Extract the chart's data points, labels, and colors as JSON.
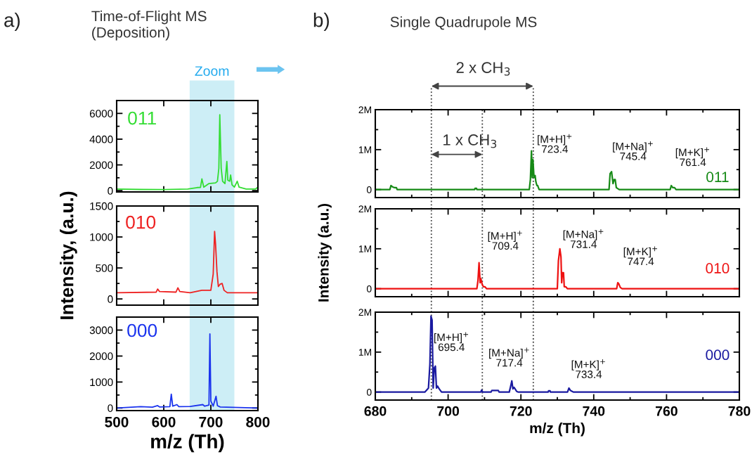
{
  "chart_data": [
    {
      "type": "line",
      "title": "Time-of-Flight MS\n(Deposition)",
      "annotations": [
        "a)"
      ],
      "xlim": [
        500,
        800
      ],
      "xticks": [
        500,
        600,
        700,
        800
      ],
      "ylim": [
        -100,
        7000
      ],
      "yticks": [
        0,
        {
          "value": 1000,
          "label": null
        },
        2000,
        {
          "value": 3000,
          "label": null
        },
        4000,
        {
          "value": 5000,
          "label": null
        },
        6000
      ],
      "tick_labels": "y",
      "grid": false,
      "legend": false,
      "bands": [
        {
          "axis": "x",
          "from": 655,
          "to": 750,
          "label": "Zoom",
          "color": "#cdeef6"
        }
      ],
      "series": [
        {
          "name": "011",
          "color": "#33dd33",
          "x": [
            500,
            551,
            601,
            651,
            671,
            678,
            681,
            685,
            696,
            710,
            714,
            717,
            719,
            722,
            725,
            730,
            734,
            736,
            740,
            742,
            745,
            750,
            756,
            760,
            775,
            795,
            800
          ],
          "values": [
            130,
            90,
            80,
            130,
            240,
            250,
            910,
            270,
            550,
            600,
            730,
            1730,
            5900,
            1730,
            730,
            550,
            2270,
            820,
            730,
            1220,
            450,
            270,
            730,
            270,
            130,
            130,
            270
          ]
        }
      ]
    },
    {
      "type": "line",
      "ylabel": "Intensity, (a.u.)",
      "xlim": [
        500,
        800
      ],
      "xticks": [
        500,
        600,
        700,
        800
      ],
      "ylim": [
        -100,
        1500
      ],
      "yticks": [
        0,
        {
          "value": 250,
          "label": null
        },
        500,
        {
          "value": 750,
          "label": null
        },
        1000,
        {
          "value": 1250,
          "label": null
        },
        1500
      ],
      "tick_labels": "y",
      "grid": false,
      "legend": false,
      "bands": [
        {
          "axis": "x",
          "from": 655,
          "to": 750,
          "color": "#cdeef6"
        }
      ],
      "series": [
        {
          "name": "010",
          "color": "#ee2222",
          "x": [
            500,
            584,
            587,
            591,
            626,
            630,
            634,
            656,
            681,
            700,
            705,
            708,
            710,
            713,
            716,
            720,
            724,
            728,
            735,
            800
          ],
          "values": [
            100,
            110,
            160,
            120,
            110,
            180,
            120,
            100,
            140,
            140,
            400,
            1090,
            890,
            440,
            200,
            240,
            250,
            140,
            100,
            100
          ]
        }
      ]
    },
    {
      "type": "line",
      "xlabel": "m/z (Th)",
      "xlim": [
        500,
        800
      ],
      "xticks": [
        500,
        600,
        700,
        800
      ],
      "ylim": [
        -100,
        3500
      ],
      "yticks": [
        0,
        {
          "value": 500,
          "label": null
        },
        1000,
        {
          "value": 1500,
          "label": null
        },
        2000,
        {
          "value": 2500,
          "label": null
        },
        3000
      ],
      "grid": false,
      "legend": false,
      "bands": [
        {
          "axis": "x",
          "from": 655,
          "to": 750,
          "color": "#cdeef6"
        }
      ],
      "series": [
        {
          "name": "000",
          "color": "#1a33ee",
          "x": [
            500,
            551,
            576,
            587,
            591,
            613,
            616,
            619,
            628,
            632,
            656,
            683,
            687,
            696,
            698,
            700,
            705,
            711,
            714,
            720,
            800
          ],
          "values": [
            0,
            50,
            30,
            90,
            40,
            50,
            530,
            70,
            130,
            50,
            60,
            130,
            70,
            110,
            2850,
            270,
            70,
            450,
            90,
            40,
            0
          ]
        }
      ]
    },
    {
      "type": "line",
      "title": "Single Quadrupole MS",
      "xlim": [
        680,
        780
      ],
      "xticks": [
        680,
        {
          "value": 690,
          "label": null
        },
        700,
        {
          "value": 710,
          "label": null
        },
        720,
        {
          "value": 730,
          "label": null
        },
        740,
        {
          "value": 750,
          "label": null
        },
        760,
        {
          "value": 770,
          "label": null
        },
        780
      ],
      "ylim": [
        -200000,
        2000000
      ],
      "yticks": [
        0,
        {
          "value": 500000,
          "label": null
        },
        {
          "value": 1000000,
          "label": "1M"
        },
        {
          "value": 1500000,
          "label": null
        },
        {
          "value": 2000000,
          "label": "2M"
        }
      ],
      "tick_labels": "y",
      "grid": false,
      "legend": false,
      "annotations": [
        "b)",
        "2 x CH$_{3}$",
        "1 x CH$_{3}$",
        "[M+H]$^{+}$",
        "723.4",
        "[M+Na]$^{+}$",
        "745.4",
        "[M+K]$^{+}$",
        "761.4"
      ],
      "ref_lines": [
        {
          "axis": "x",
          "value": 695.4,
          "color": "#444444",
          "line_style": "dotted"
        },
        {
          "axis": "x",
          "value": 709.4,
          "color": "#444444",
          "line_style": "dotted"
        },
        {
          "axis": "x",
          "value": 723.4,
          "color": "#444444",
          "line_style": "dotted"
        }
      ],
      "series": [
        {
          "name": "011",
          "color": "#168a16",
          "x": [
            680,
            684,
            684.3,
            684.7,
            685.2,
            685.8,
            686,
            707.3,
            707.4,
            707.8,
            707.9,
            722.3,
            722.6,
            722.9,
            723.1,
            723.3,
            723.6,
            723.9,
            724.1,
            724.4,
            724.6,
            725,
            725.4,
            744.2,
            744.5,
            744.9,
            745.3,
            745.6,
            745.9,
            746.2,
            746.5,
            747,
            761,
            761.3,
            761.7,
            762.2,
            762.6,
            780
          ],
          "values": [
            0,
            0,
            100000,
            70000,
            50000,
            50000,
            0,
            0,
            30000,
            30000,
            0,
            0,
            250000,
            970000,
            300000,
            750000,
            300000,
            350000,
            200000,
            100000,
            100000,
            0,
            0,
            0,
            400000,
            450000,
            150000,
            250000,
            250000,
            50000,
            30000,
            0,
            0,
            100000,
            50000,
            50000,
            0,
            0
          ]
        }
      ]
    },
    {
      "type": "line",
      "ylabel": "Intensity (a.u.)",
      "xlim": [
        680,
        780
      ],
      "xticks": [
        680,
        {
          "value": 690,
          "label": null
        },
        700,
        {
          "value": 710,
          "label": null
        },
        720,
        {
          "value": 730,
          "label": null
        },
        740,
        {
          "value": 750,
          "label": null
        },
        760,
        {
          "value": 770,
          "label": null
        },
        780
      ],
      "ylim": [
        -200000,
        2000000
      ],
      "yticks": [
        0,
        {
          "value": 500000,
          "label": null
        },
        {
          "value": 1000000,
          "label": "1M"
        },
        {
          "value": 1500000,
          "label": null
        },
        {
          "value": 2000000,
          "label": "2M"
        }
      ],
      "tick_labels": "y",
      "grid": false,
      "legend": false,
      "annotations": [
        "[M+H]$^{+}$",
        "709.4",
        "[M+Na]$^{+}$",
        "731.4",
        "[M+K]$^{+}$",
        "747.4"
      ],
      "ref_lines": [
        {
          "axis": "x",
          "value": 695.4,
          "color": "#444444",
          "line_style": "dotted"
        },
        {
          "axis": "x",
          "value": 709.4,
          "color": "#444444",
          "line_style": "dotted"
        },
        {
          "axis": "x",
          "value": 723.4,
          "color": "#444444",
          "line_style": "dotted"
        }
      ],
      "series": [
        {
          "name": "010",
          "color": "#ee1111",
          "x": [
            680,
            707.9,
            708.2,
            708.5,
            708.8,
            709.0,
            709.4,
            709.7,
            710.1,
            710.6,
            730.0,
            730.3,
            730.7,
            731.0,
            731.2,
            731.4,
            731.7,
            731.9,
            732.3,
            732.8,
            746.3,
            746.6,
            746.9,
            747.3,
            747.8,
            780
          ],
          "values": [
            0,
            0,
            200000,
            650000,
            150000,
            250000,
            100000,
            50000,
            50000,
            0,
            0,
            700000,
            1000000,
            800000,
            150000,
            400000,
            400000,
            50000,
            50000,
            0,
            0,
            150000,
            120000,
            30000,
            0,
            0
          ]
        }
      ]
    },
    {
      "type": "line",
      "xlabel": "m/z (Th)",
      "xlim": [
        680,
        780
      ],
      "xticks": [
        680,
        {
          "value": 690,
          "label": null
        },
        700,
        {
          "value": 710,
          "label": null
        },
        720,
        {
          "value": 730,
          "label": null
        },
        740,
        {
          "value": 750,
          "label": null
        },
        760,
        {
          "value": 770,
          "label": null
        },
        780
      ],
      "ylim": [
        -200000,
        2000000
      ],
      "yticks": [
        0,
        {
          "value": 500000,
          "label": null
        },
        {
          "value": 1000000,
          "label": "1M"
        },
        {
          "value": 1500000,
          "label": null
        },
        {
          "value": 2000000,
          "label": "2M"
        }
      ],
      "grid": false,
      "legend": false,
      "annotations": [
        "[M+H]$^{+}$",
        "695.4",
        "[M+Na]$^{+}$",
        "717.4",
        "[M+K]$^{+}$",
        "733.4"
      ],
      "ref_lines": [
        {
          "axis": "x",
          "value": 695.4,
          "color": "#444444",
          "line_style": "dotted"
        },
        {
          "axis": "x",
          "value": 709.4,
          "color": "#444444",
          "line_style": "dotted"
        },
        {
          "axis": "x",
          "value": 723.4,
          "color": "#444444",
          "line_style": "dotted"
        }
      ],
      "series": [
        {
          "name": "000",
          "color": "#1a1aa0",
          "x": [
            680,
            693.6,
            694.6,
            695.0,
            695.3,
            695.6,
            695.9,
            696.2,
            696.5,
            696.8,
            697.1,
            697.4,
            697.8,
            698.2,
            709.0,
            709.2,
            709.5,
            711.8,
            712.0,
            713.8,
            714.0,
            716.8,
            717.2,
            717.5,
            717.8,
            718.1,
            718.4,
            718.8,
            719.2,
            727.5,
            727.6,
            728.0,
            728.1,
            732.8,
            733.2,
            733.6,
            734.0,
            734.4,
            780
          ],
          "values": [
            0,
            0,
            100000,
            700000,
            1900000,
            1800000,
            100000,
            600000,
            650000,
            100000,
            150000,
            100000,
            50000,
            0,
            0,
            50000,
            0,
            0,
            40000,
            40000,
            0,
            0,
            150000,
            280000,
            80000,
            120000,
            80000,
            20000,
            0,
            0,
            30000,
            30000,
            0,
            0,
            100000,
            40000,
            20000,
            0,
            0
          ]
        }
      ]
    }
  ]
}
